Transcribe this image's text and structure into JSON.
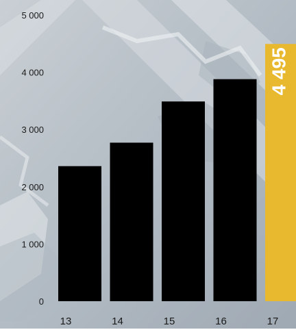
{
  "chart_data": {
    "type": "bar",
    "categories": [
      "13",
      "14",
      "15",
      "16",
      "17"
    ],
    "values": [
      2360,
      2770,
      3490,
      3880,
      4495
    ],
    "value_labels": [
      "",
      "",
      "",
      "",
      "4 495"
    ],
    "yticks": [
      "0",
      "1 000",
      "2 000",
      "3 000",
      "4 000",
      "5 000"
    ],
    "ylim": [
      0,
      5000
    ],
    "grid": false,
    "bar_color": "#000000",
    "highlight_color": "#e8b92f",
    "highlight_index": 4,
    "value_label_color": "#ffffff"
  }
}
